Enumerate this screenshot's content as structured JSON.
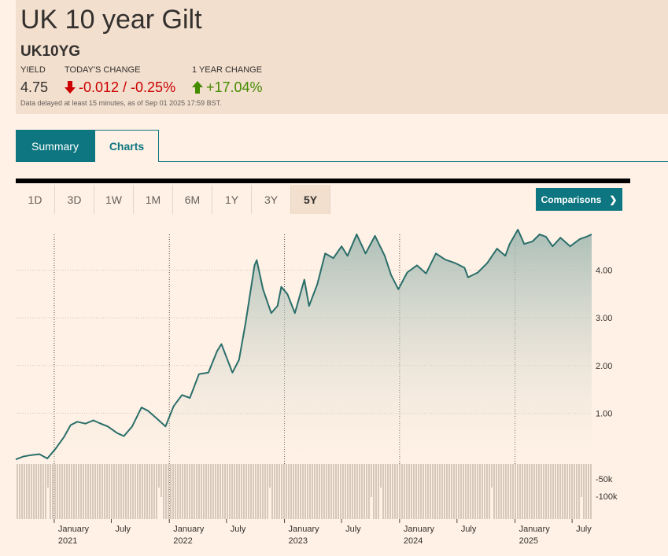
{
  "header": {
    "title": "UK 10 year Gilt",
    "symbol": "UK10YG",
    "yield_label": "YIELD",
    "yield_value": "4.75",
    "todays_change_label": "TODAY'S CHANGE",
    "todays_change_value": "-0.012 / -0.25%",
    "year_change_label": "1 YEAR CHANGE",
    "year_change_value": "+17.04%",
    "delay_note": "Data delayed at least 15 minutes, as of Sep 01 2025 17:59 BST.",
    "down_color": "#cc0000",
    "up_color": "#458b00"
  },
  "tabs": [
    {
      "label": "Summary",
      "active": true
    },
    {
      "label": "Charts",
      "active": false
    }
  ],
  "periods": [
    {
      "label": "1D",
      "active": false
    },
    {
      "label": "3D",
      "active": false
    },
    {
      "label": "1W",
      "active": false
    },
    {
      "label": "1M",
      "active": false
    },
    {
      "label": "6M",
      "active": false
    },
    {
      "label": "1Y",
      "active": false
    },
    {
      "label": "3Y",
      "active": false
    },
    {
      "label": "5Y",
      "active": true
    }
  ],
  "comparisons_label": "Comparisons",
  "chart_data": {
    "type": "area",
    "line_color": "#2a6e6a",
    "y_ticks": [
      1.0,
      2.0,
      3.0,
      4.0
    ],
    "ylim": [
      0.0,
      4.8
    ],
    "volume_ticks": [
      "-50k",
      "-100k"
    ],
    "x_ticks": [
      {
        "date": "2021-01-01",
        "month": "January",
        "year": "2021"
      },
      {
        "date": "2021-07-01",
        "month": "July",
        "year": ""
      },
      {
        "date": "2022-01-01",
        "month": "January",
        "year": "2022"
      },
      {
        "date": "2022-07-01",
        "month": "July",
        "year": ""
      },
      {
        "date": "2023-01-01",
        "month": "January",
        "year": "2023"
      },
      {
        "date": "2023-07-01",
        "month": "July",
        "year": ""
      },
      {
        "date": "2024-01-01",
        "month": "January",
        "year": "2024"
      },
      {
        "date": "2024-07-01",
        "month": "July",
        "year": ""
      },
      {
        "date": "2025-01-01",
        "month": "January",
        "year": "2025"
      },
      {
        "date": "2025-07-01",
        "month": "July",
        "year": ""
      }
    ],
    "series": [
      {
        "points": [
          [
            "2020-09-01",
            0.03
          ],
          [
            "2020-09-25",
            0.09
          ],
          [
            "2020-10-20",
            0.12
          ],
          [
            "2020-11-15",
            0.14
          ],
          [
            "2020-12-10",
            0.05
          ],
          [
            "2021-01-05",
            0.25
          ],
          [
            "2021-02-01",
            0.5
          ],
          [
            "2021-02-22",
            0.75
          ],
          [
            "2021-03-15",
            0.82
          ],
          [
            "2021-04-10",
            0.78
          ],
          [
            "2021-05-05",
            0.85
          ],
          [
            "2021-05-25",
            0.79
          ],
          [
            "2021-06-20",
            0.72
          ],
          [
            "2021-07-20",
            0.58
          ],
          [
            "2021-08-10",
            0.52
          ],
          [
            "2021-09-05",
            0.72
          ],
          [
            "2021-10-05",
            1.12
          ],
          [
            "2021-10-25",
            1.05
          ],
          [
            "2021-11-20",
            0.9
          ],
          [
            "2021-12-20",
            0.72
          ],
          [
            "2022-01-15",
            1.15
          ],
          [
            "2022-02-10",
            1.38
          ],
          [
            "2022-03-07",
            1.32
          ],
          [
            "2022-04-05",
            1.82
          ],
          [
            "2022-05-05",
            1.85
          ],
          [
            "2022-06-01",
            2.3
          ],
          [
            "2022-06-15",
            2.45
          ],
          [
            "2022-07-20",
            1.85
          ],
          [
            "2022-08-10",
            2.12
          ],
          [
            "2022-08-31",
            2.9
          ],
          [
            "2022-09-28",
            4.1
          ],
          [
            "2022-10-05",
            4.21
          ],
          [
            "2022-10-25",
            3.6
          ],
          [
            "2022-11-20",
            3.1
          ],
          [
            "2022-12-10",
            3.25
          ],
          [
            "2022-12-22",
            3.65
          ],
          [
            "2023-01-10",
            3.5
          ],
          [
            "2023-02-03",
            3.1
          ],
          [
            "2023-03-05",
            3.8
          ],
          [
            "2023-03-20",
            3.25
          ],
          [
            "2023-04-15",
            3.7
          ],
          [
            "2023-05-10",
            4.35
          ],
          [
            "2023-06-05",
            4.25
          ],
          [
            "2023-07-01",
            4.5
          ],
          [
            "2023-07-20",
            4.3
          ],
          [
            "2023-08-18",
            4.75
          ],
          [
            "2023-09-15",
            4.35
          ],
          [
            "2023-10-15",
            4.72
          ],
          [
            "2023-11-15",
            4.3
          ],
          [
            "2023-12-05",
            3.9
          ],
          [
            "2023-12-28",
            3.6
          ],
          [
            "2024-01-25",
            3.95
          ],
          [
            "2024-02-25",
            4.1
          ],
          [
            "2024-03-25",
            3.93
          ],
          [
            "2024-04-25",
            4.35
          ],
          [
            "2024-05-25",
            4.22
          ],
          [
            "2024-06-25",
            4.15
          ],
          [
            "2024-07-25",
            4.05
          ],
          [
            "2024-08-05",
            3.85
          ],
          [
            "2024-09-05",
            3.95
          ],
          [
            "2024-10-05",
            4.15
          ],
          [
            "2024-11-05",
            4.45
          ],
          [
            "2024-12-01",
            4.3
          ],
          [
            "2024-12-15",
            4.55
          ],
          [
            "2025-01-10",
            4.85
          ],
          [
            "2025-01-30",
            4.55
          ],
          [
            "2025-02-25",
            4.6
          ],
          [
            "2025-03-20",
            4.75
          ],
          [
            "2025-04-09",
            4.7
          ],
          [
            "2025-04-30",
            4.5
          ],
          [
            "2025-05-25",
            4.68
          ],
          [
            "2025-06-25",
            4.5
          ],
          [
            "2025-07-25",
            4.65
          ],
          [
            "2025-08-15",
            4.7
          ],
          [
            "2025-09-01",
            4.75
          ]
        ]
      }
    ]
  }
}
